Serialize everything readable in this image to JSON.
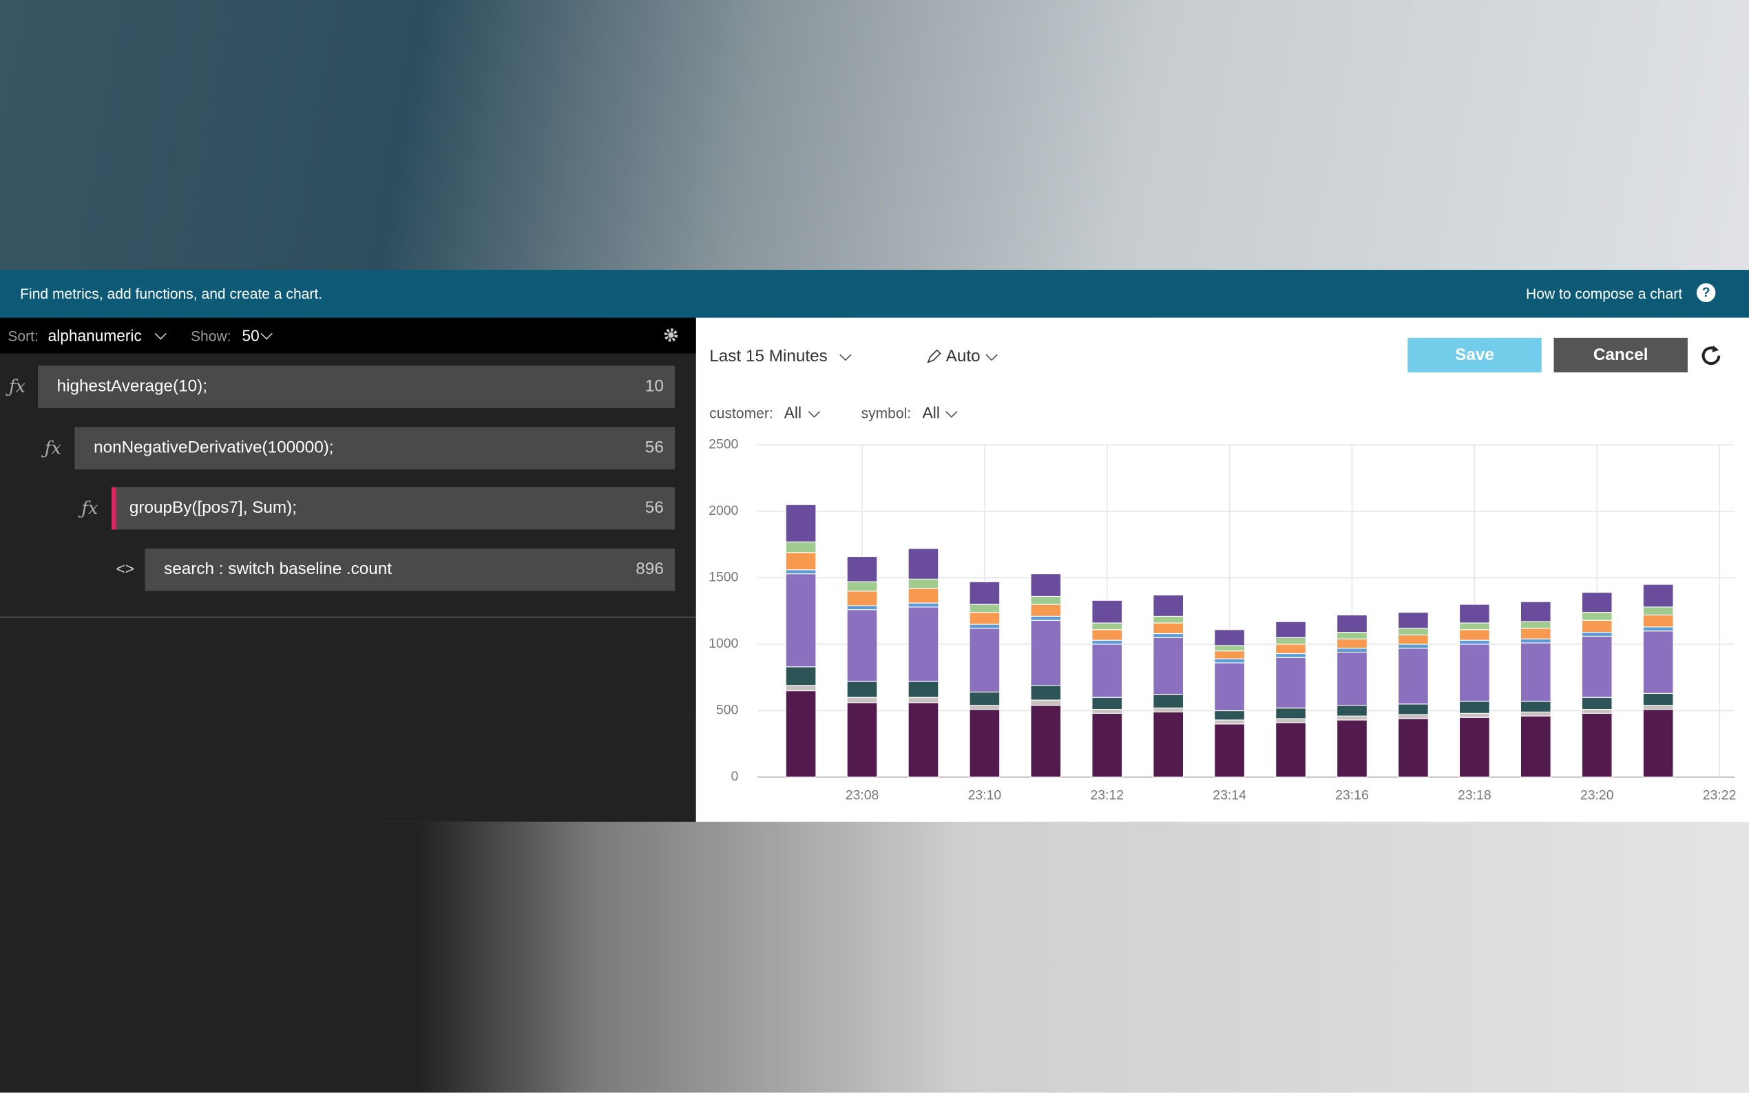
{
  "banner": {
    "text": "Find metrics, add functions, and create a chart.",
    "help": "How to compose a chart",
    "help_icon": "?"
  },
  "sidebar": {
    "sort_label": "Sort:",
    "sort_value": "alphanumeric",
    "show_label": "Show:",
    "show_value": 50,
    "rows": [
      {
        "icon": "ƒx",
        "label": "highestAverage(10);",
        "count": 10
      },
      {
        "icon": "ƒx",
        "label": "nonNegativeDerivative(100000);",
        "count": 56
      },
      {
        "icon": "ƒx",
        "label": "groupBy([pos7], Sum);",
        "count": 56
      },
      {
        "icon": "<>",
        "label": "search : switch baseline .count",
        "count": 896
      }
    ]
  },
  "toolbar": {
    "range": "Last 15 Minutes",
    "mode": "Auto",
    "save": "Save",
    "cancel": "Cancel"
  },
  "filters": [
    {
      "label": "customer:",
      "value": "All"
    },
    {
      "label": "symbol:",
      "value": "All"
    }
  ],
  "chart_data": {
    "type": "bar",
    "stacked": true,
    "grid": true,
    "categories": [
      null,
      "23:08",
      null,
      "23:10",
      null,
      "23:12",
      null,
      "23:14",
      null,
      "23:16",
      null,
      "23:18",
      null,
      "23:20",
      null,
      "23:22"
    ],
    "series": [
      {
        "color": "#521a4d",
        "values": [
          650,
          560,
          560,
          510,
          540,
          480,
          490,
          400,
          410,
          430,
          440,
          450,
          460,
          480,
          510,
          null
        ]
      },
      {
        "color": "#c9c0c0",
        "values": [
          40,
          40,
          40,
          30,
          40,
          30,
          30,
          30,
          30,
          30,
          30,
          30,
          30,
          30,
          30,
          null
        ]
      },
      {
        "color": "#2d5558",
        "values": [
          140,
          120,
          120,
          100,
          110,
          90,
          100,
          70,
          80,
          80,
          80,
          90,
          80,
          90,
          90,
          null
        ]
      },
      {
        "color": "#8a70be",
        "values": [
          700,
          540,
          560,
          480,
          490,
          400,
          430,
          360,
          380,
          400,
          420,
          430,
          440,
          460,
          470,
          null
        ]
      },
      {
        "color": "#5a9bd5",
        "values": [
          30,
          30,
          30,
          30,
          30,
          30,
          30,
          30,
          30,
          30,
          30,
          30,
          30,
          30,
          30,
          null
        ]
      },
      {
        "color": "#f79a50",
        "values": [
          130,
          110,
          110,
          90,
          90,
          80,
          80,
          60,
          70,
          70,
          70,
          80,
          80,
          90,
          90,
          null
        ]
      },
      {
        "color": "#9fcb8f",
        "values": [
          80,
          70,
          70,
          60,
          60,
          50,
          50,
          40,
          50,
          50,
          50,
          50,
          50,
          60,
          60,
          null
        ]
      },
      {
        "color": "#6a4c9c",
        "values": [
          280,
          190,
          230,
          170,
          170,
          170,
          160,
          120,
          120,
          130,
          120,
          140,
          150,
          150,
          170,
          null
        ]
      }
    ],
    "ylim": [
      0,
      2500
    ],
    "yticks": [
      0,
      500,
      1000,
      1500,
      2000,
      2500
    ]
  }
}
